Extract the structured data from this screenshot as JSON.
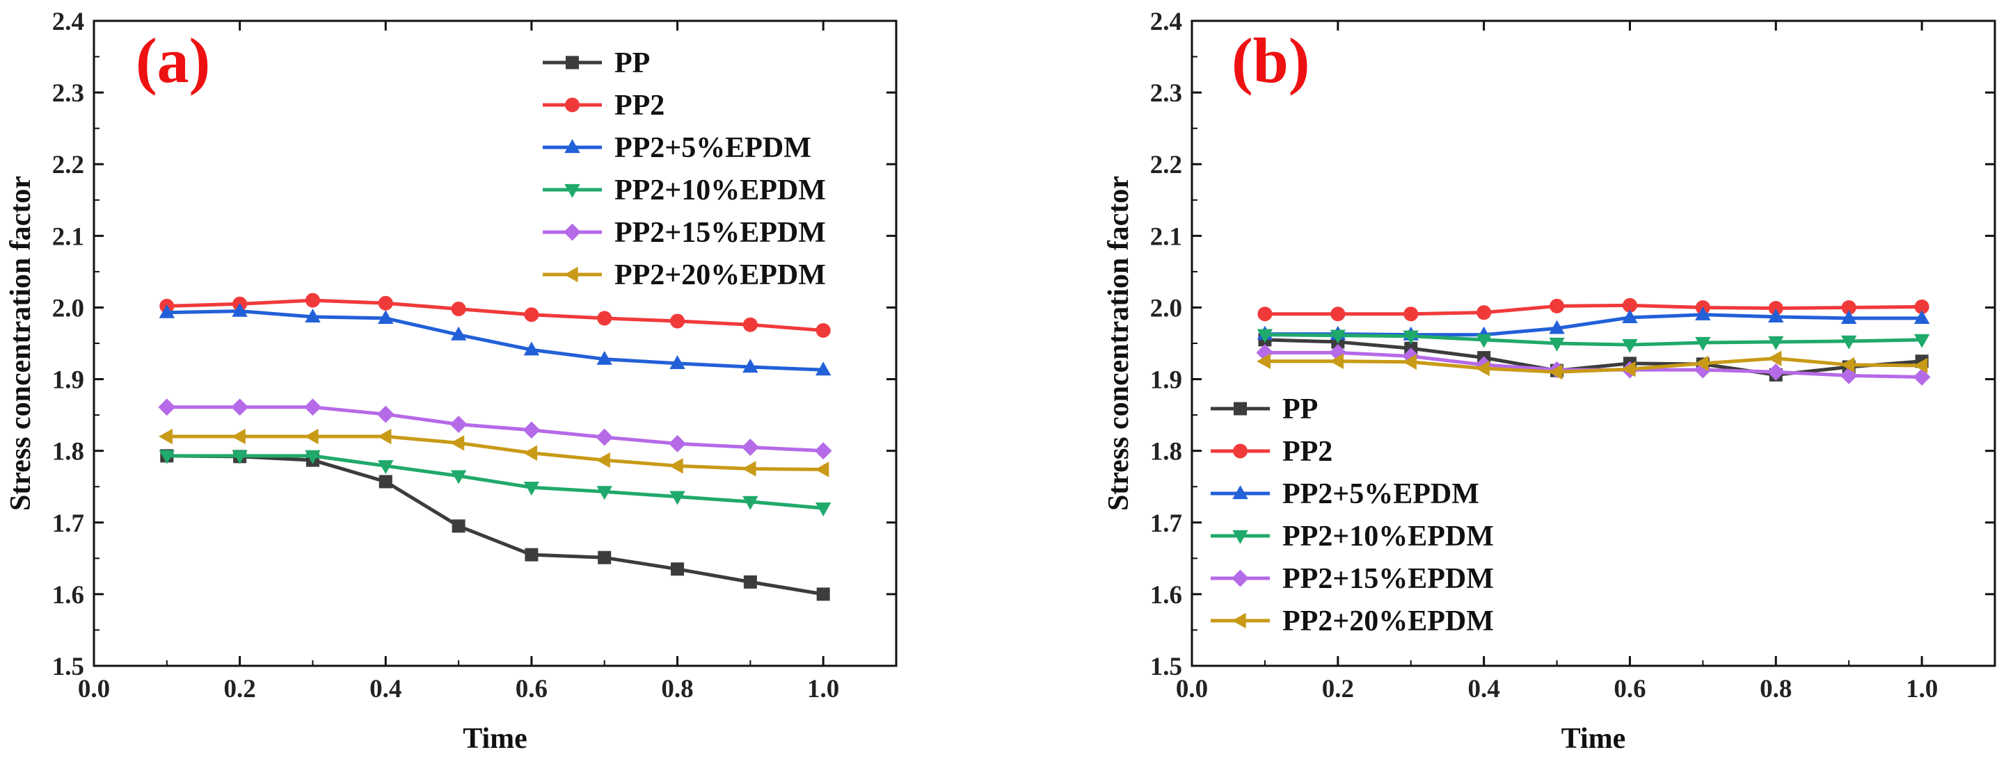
{
  "chart_data": [
    {
      "type": "line",
      "panel_label": "(a)",
      "xlabel": "Time",
      "ylabel": "Stress concentration factor",
      "xlim": [
        0.0,
        1.1
      ],
      "ylim": [
        1.5,
        2.4
      ],
      "x_ticks": [
        "0.0",
        "0.2",
        "0.4",
        "0.6",
        "0.8",
        "1.0"
      ],
      "y_ticks": [
        "1.5",
        "1.6",
        "1.7",
        "1.8",
        "1.9",
        "2.0",
        "2.1",
        "2.2",
        "2.3",
        "2.4"
      ],
      "legend_position": "top-right",
      "x": [
        0.1,
        0.2,
        0.3,
        0.4,
        0.5,
        0.6,
        0.7,
        0.8,
        0.9,
        1.0
      ],
      "series": [
        {
          "name": "PP",
          "color": "#3c3c3c",
          "marker": "square",
          "values": [
            1.793,
            1.792,
            1.787,
            1.757,
            1.695,
            1.655,
            1.651,
            1.635,
            1.617,
            1.6
          ]
        },
        {
          "name": "PP2",
          "color": "#f03a3a",
          "marker": "circle",
          "values": [
            2.002,
            2.005,
            2.01,
            2.006,
            1.998,
            1.99,
            1.985,
            1.981,
            1.976,
            1.968
          ]
        },
        {
          "name": "PP2+5%EPDM",
          "color": "#2260d8",
          "marker": "triangle-up",
          "values": [
            1.993,
            1.995,
            1.987,
            1.985,
            1.962,
            1.941,
            1.928,
            1.922,
            1.917,
            1.913
          ]
        },
        {
          "name": "PP2+10%EPDM",
          "color": "#1fa96a",
          "marker": "triangle-down",
          "values": [
            1.793,
            1.793,
            1.793,
            1.779,
            1.765,
            1.749,
            1.743,
            1.736,
            1.729,
            1.72
          ]
        },
        {
          "name": "PP2+15%EPDM",
          "color": "#b56ae8",
          "marker": "diamond",
          "values": [
            1.861,
            1.861,
            1.861,
            1.851,
            1.837,
            1.829,
            1.819,
            1.81,
            1.805,
            1.8
          ]
        },
        {
          "name": "PP2+20%EPDM",
          "color": "#c99a17",
          "marker": "triangle-left",
          "values": [
            1.82,
            1.82,
            1.82,
            1.82,
            1.811,
            1.797,
            1.787,
            1.779,
            1.775,
            1.774
          ]
        }
      ]
    },
    {
      "type": "line",
      "panel_label": "(b)",
      "xlabel": "Time",
      "ylabel": "Stress concentration factor",
      "xlim": [
        0.0,
        1.1
      ],
      "ylim": [
        1.5,
        2.4
      ],
      "x_ticks": [
        "0.0",
        "0.2",
        "0.4",
        "0.6",
        "0.8",
        "1.0"
      ],
      "y_ticks": [
        "1.5",
        "1.6",
        "1.7",
        "1.8",
        "1.9",
        "2.0",
        "2.1",
        "2.2",
        "2.3",
        "2.4"
      ],
      "legend_position": "bottom-left",
      "x": [
        0.1,
        0.2,
        0.3,
        0.4,
        0.5,
        0.6,
        0.7,
        0.8,
        0.9,
        1.0
      ],
      "series": [
        {
          "name": "PP",
          "color": "#3c3c3c",
          "marker": "square",
          "values": [
            1.955,
            1.952,
            1.943,
            1.93,
            1.912,
            1.922,
            1.921,
            1.906,
            1.917,
            1.925
          ]
        },
        {
          "name": "PP2",
          "color": "#f03a3a",
          "marker": "circle",
          "values": [
            1.991,
            1.991,
            1.991,
            1.993,
            2.002,
            2.003,
            2.0,
            1.999,
            2.0,
            2.001
          ]
        },
        {
          "name": "PP2+5%EPDM",
          "color": "#2260d8",
          "marker": "triangle-up",
          "values": [
            1.963,
            1.963,
            1.962,
            1.962,
            1.971,
            1.986,
            1.99,
            1.987,
            1.985,
            1.985
          ]
        },
        {
          "name": "PP2+10%EPDM",
          "color": "#1fa96a",
          "marker": "triangle-down",
          "values": [
            1.962,
            1.961,
            1.96,
            1.955,
            1.95,
            1.948,
            1.951,
            1.952,
            1.953,
            1.955
          ]
        },
        {
          "name": "PP2+15%EPDM",
          "color": "#b56ae8",
          "marker": "diamond",
          "values": [
            1.937,
            1.937,
            1.932,
            1.92,
            1.913,
            1.913,
            1.913,
            1.91,
            1.905,
            1.903
          ]
        },
        {
          "name": "PP2+20%EPDM",
          "color": "#c99a17",
          "marker": "triangle-left",
          "values": [
            1.925,
            1.925,
            1.924,
            1.915,
            1.91,
            1.914,
            1.922,
            1.929,
            1.92,
            1.919
          ]
        }
      ]
    }
  ]
}
